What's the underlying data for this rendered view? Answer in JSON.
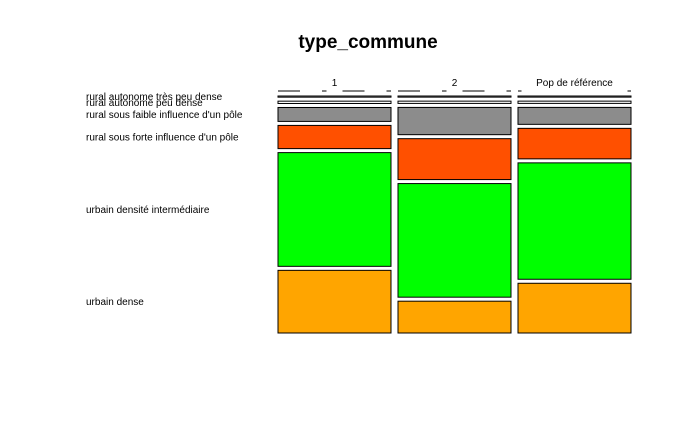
{
  "chart_data": {
    "type": "mosaic",
    "title": "type_commune",
    "columns": [
      "1",
      "2",
      "Pop de référence"
    ],
    "categories": [
      "rural autonome très peu dense",
      "rural autonome peu dense",
      "rural sous faible influence d'un pôle",
      "rural sous forte influence d'un pôle",
      "urbain densité intermédiaire",
      "urbain dense"
    ],
    "colors": [
      "#ffffff",
      "#ffffff",
      "#8c8c8c",
      "#ff5000",
      "#00ff00",
      "#ffa500"
    ],
    "series": [
      {
        "name": "1",
        "values": [
          0.5,
          1,
          6,
          10,
          49,
          27
        ]
      },
      {
        "name": "2",
        "values": [
          0.5,
          1,
          12,
          18,
          50,
          14
        ]
      },
      {
        "name": "Pop de référence",
        "values": [
          0.5,
          1,
          7.5,
          13.5,
          51.5,
          22
        ]
      }
    ]
  }
}
